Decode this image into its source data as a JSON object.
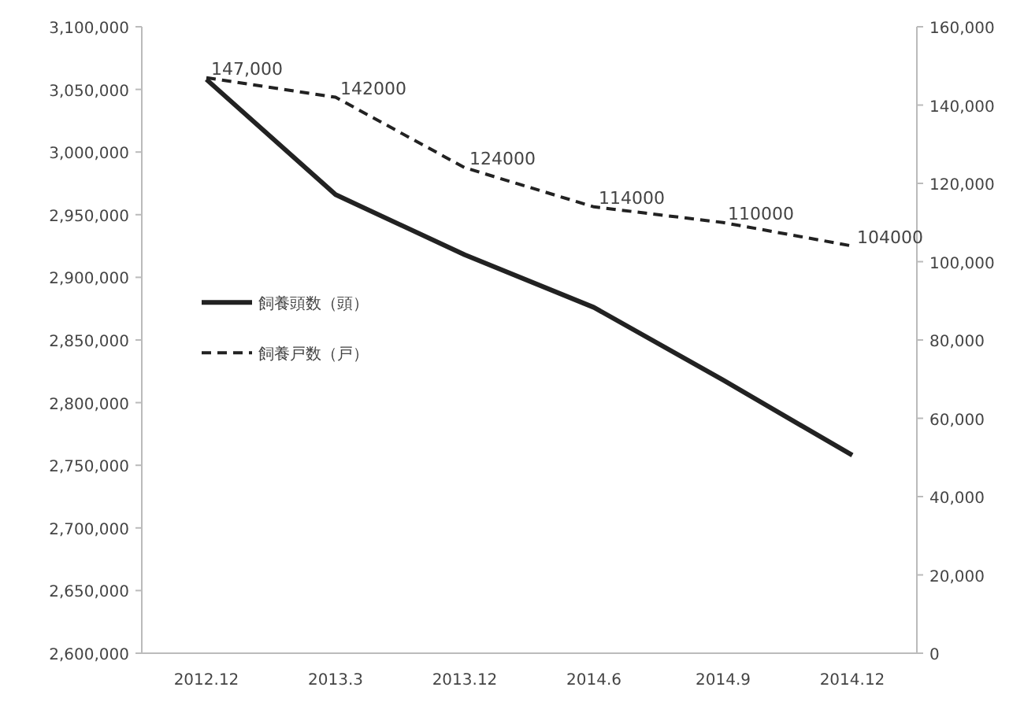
{
  "chart_data": {
    "type": "line",
    "categories": [
      "2012.12",
      "2013.3",
      "2013.12",
      "2014.6",
      "2014.9",
      "2014.12"
    ],
    "series": [
      {
        "name": "飼養頭数（頭）",
        "color": "#222222",
        "line_style": "solid",
        "values": [
          3058000,
          2966000,
          2918000,
          2876000,
          2818000,
          2758000
        ]
      },
      {
        "name": "飼養戸数（戸）",
        "color": "#222222",
        "line_style": "dashed",
        "axis": "y2",
        "values": [
          147000,
          142000,
          124000,
          114000,
          110000,
          104000
        ],
        "value_labels": [
          "147,000",
          "142000",
          "124000",
          "114000",
          "110000",
          "104000"
        ]
      }
    ],
    "ylim": [
      2600000,
      3100000
    ],
    "yticks": [
      {
        "value": 2600000,
        "label": "2,600,000"
      },
      {
        "value": 2650000,
        "label": "2,650,000"
      },
      {
        "value": 2700000,
        "label": "2,700,000"
      },
      {
        "value": 2750000,
        "label": "2,750,000"
      },
      {
        "value": 2800000,
        "label": "2,800,000"
      },
      {
        "value": 2850000,
        "label": "2,850,000"
      },
      {
        "value": 2900000,
        "label": "2,900,000"
      },
      {
        "value": 2950000,
        "label": "2,950,000"
      },
      {
        "value": 3000000,
        "label": "3,000,000"
      },
      {
        "value": 3050000,
        "label": "3,050,000"
      },
      {
        "value": 3100000,
        "label": "3,100,000"
      }
    ],
    "y2lim": [
      0,
      160000
    ],
    "y2ticks": [
      0,
      {
        "value": 20000,
        "label": "20,000"
      },
      {
        "value": 40000,
        "label": "40,000"
      },
      {
        "value": 60000,
        "label": "60,000"
      },
      {
        "value": 80000,
        "label": "80,000"
      },
      {
        "value": 100000,
        "label": "100,000"
      },
      {
        "value": 120000,
        "label": "120,000"
      },
      {
        "value": 140000,
        "label": "140,000"
      },
      {
        "value": 160000,
        "label": "160,000"
      }
    ],
    "legend": "left",
    "grid": false,
    "marker": "none"
  }
}
